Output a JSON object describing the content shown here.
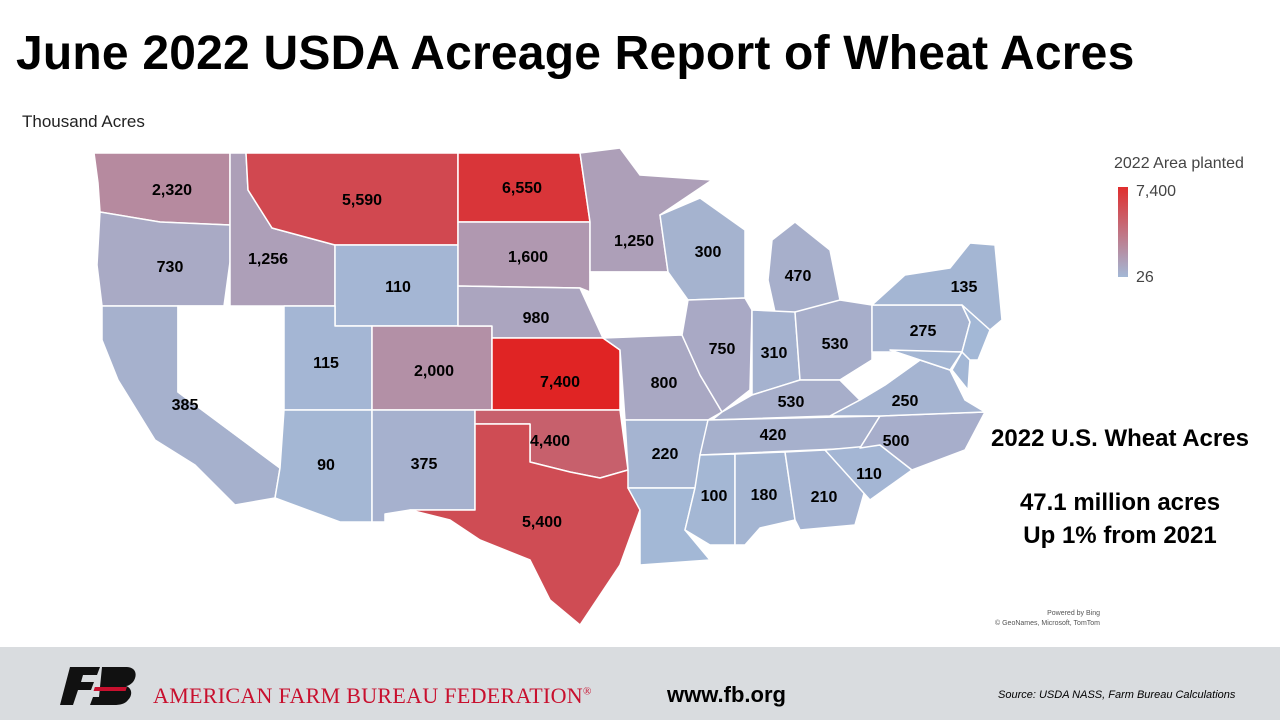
{
  "title": "June 2022 USDA Acreage Report of Wheat Acres",
  "subtitle": "Thousand Acres",
  "legend": {
    "title": "2022 Area planted",
    "max_label": "7,400",
    "min_label": "26",
    "max_value": 7400,
    "min_value": 26,
    "color_high": "#e02424",
    "color_low": "#a3b8d6"
  },
  "summary": {
    "heading": "2022 U.S. Wheat Acres",
    "line1": "47.1 million acres",
    "line2": "Up 1% from 2021"
  },
  "attribution": {
    "line1": "Powered by Bing",
    "line2": "© GeoNames, Microsoft, TomTom"
  },
  "footer": {
    "org_name": "AMERICAN FARM BUREAU FEDERATION",
    "trademark": "®",
    "website": "www.fb.org",
    "source": "Source: USDA NASS, Farm Bureau Calculations"
  },
  "states": [
    {
      "id": "WA",
      "label": "2,320",
      "value": 2320
    },
    {
      "id": "OR",
      "label": "730",
      "value": 730
    },
    {
      "id": "CA",
      "label": "385",
      "value": 385
    },
    {
      "id": "NV",
      "label": "",
      "value": null
    },
    {
      "id": "ID",
      "label": "1,256",
      "value": 1256
    },
    {
      "id": "MT",
      "label": "5,590",
      "value": 5590
    },
    {
      "id": "WY",
      "label": "110",
      "value": 110
    },
    {
      "id": "UT",
      "label": "115",
      "value": 115
    },
    {
      "id": "AZ",
      "label": "90",
      "value": 90
    },
    {
      "id": "CO",
      "label": "2,000",
      "value": 2000
    },
    {
      "id": "NM",
      "label": "375",
      "value": 375
    },
    {
      "id": "ND",
      "label": "6,550",
      "value": 6550
    },
    {
      "id": "SD",
      "label": "1,600",
      "value": 1600
    },
    {
      "id": "NE",
      "label": "980",
      "value": 980
    },
    {
      "id": "KS",
      "label": "7,400",
      "value": 7400
    },
    {
      "id": "OK",
      "label": "4,400",
      "value": 4400
    },
    {
      "id": "TX",
      "label": "5,400",
      "value": 5400
    },
    {
      "id": "MN",
      "label": "1,250",
      "value": 1250
    },
    {
      "id": "IA",
      "label": "",
      "value": null
    },
    {
      "id": "MO",
      "label": "800",
      "value": 800
    },
    {
      "id": "AR",
      "label": "220",
      "value": 220
    },
    {
      "id": "LA",
      "label": "",
      "value": 26
    },
    {
      "id": "WI",
      "label": "300",
      "value": 300
    },
    {
      "id": "IL",
      "label": "750",
      "value": 750
    },
    {
      "id": "MI",
      "label": "470",
      "value": 470
    },
    {
      "id": "IN",
      "label": "310",
      "value": 310
    },
    {
      "id": "OH",
      "label": "530",
      "value": 530
    },
    {
      "id": "KY",
      "label": "530",
      "value": 530
    },
    {
      "id": "TN",
      "label": "420",
      "value": 420
    },
    {
      "id": "MS",
      "label": "100",
      "value": 100
    },
    {
      "id": "AL",
      "label": "180",
      "value": 180
    },
    {
      "id": "GA",
      "label": "210",
      "value": 210
    },
    {
      "id": "SC",
      "label": "110",
      "value": 110
    },
    {
      "id": "NC",
      "label": "500",
      "value": 500
    },
    {
      "id": "VA",
      "label": "250",
      "value": 250
    },
    {
      "id": "WV",
      "label": "",
      "value": null
    },
    {
      "id": "PA",
      "label": "275",
      "value": 275
    },
    {
      "id": "NY",
      "label": "135",
      "value": 135
    },
    {
      "id": "MD",
      "label": "",
      "value": 150
    },
    {
      "id": "DE",
      "label": "",
      "value": 60
    },
    {
      "id": "NJ",
      "label": "",
      "value": 26
    }
  ]
}
